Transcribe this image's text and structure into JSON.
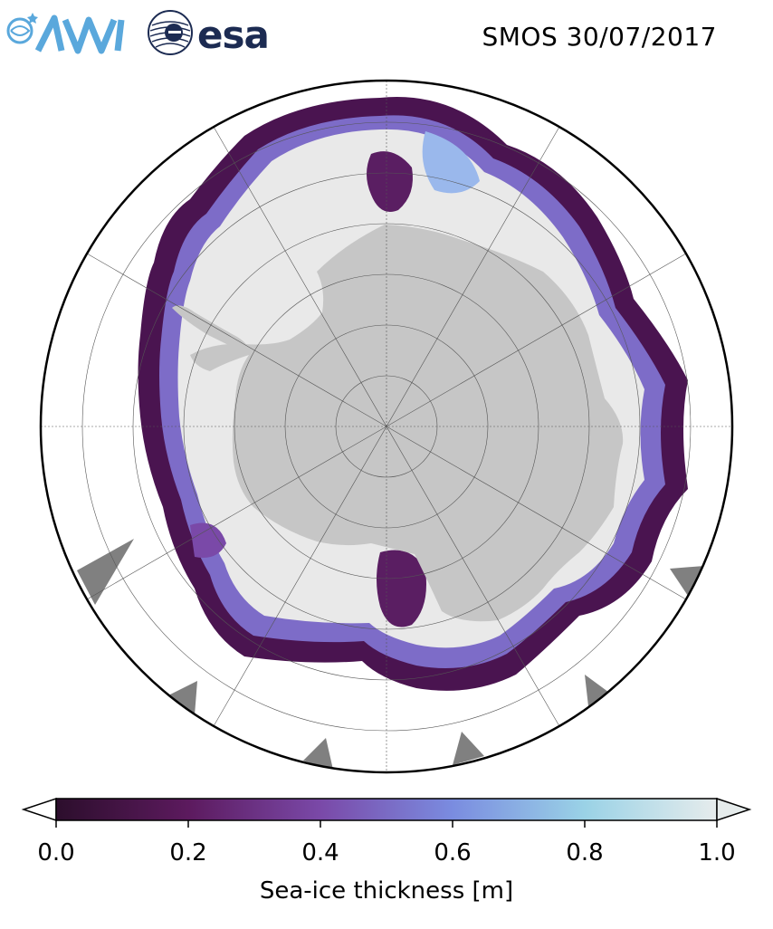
{
  "header": {
    "logos": [
      "AWI",
      "esa"
    ],
    "awi_text": "AWI",
    "esa_text": "esa",
    "title": "SMOS 30/07/2017"
  },
  "map": {
    "projection": "south-polar-stereographic",
    "land_color": "#c6c6c6",
    "ocean_color": "#ffffff",
    "thick_ice_color": "#e9e9e9",
    "missing_data_color": "#808080",
    "gridlines": true
  },
  "colorbar": {
    "label": "Sea-ice thickness [m]",
    "min": 0.0,
    "max": 1.0,
    "ticks": [
      "0.0",
      "0.2",
      "0.4",
      "0.6",
      "0.8",
      "1.0"
    ],
    "extend": "both",
    "colors": [
      "#2c0e2c",
      "#5c1a5e",
      "#7a49a8",
      "#7a8ce0",
      "#9ad2e6",
      "#e6ecec"
    ]
  }
}
